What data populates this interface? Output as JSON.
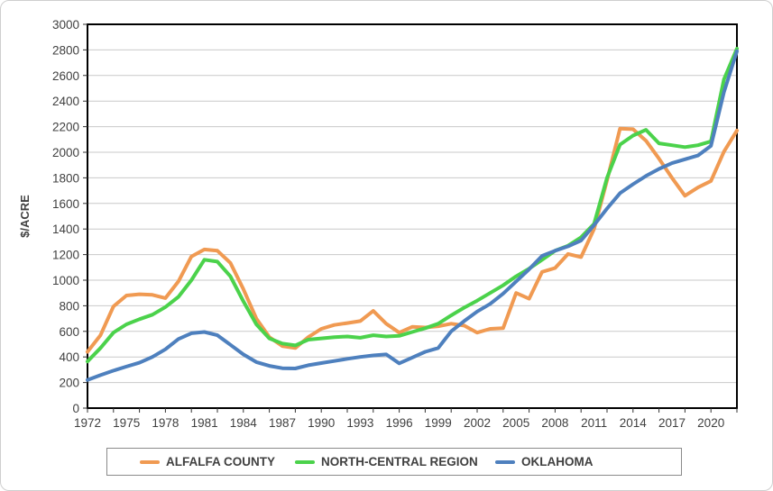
{
  "chart_data": {
    "type": "line",
    "title": "",
    "xlabel": "",
    "ylabel": "$/ACRE",
    "ylim": [
      0,
      3000
    ],
    "ytick_step": 200,
    "xlim": [
      1972,
      2022
    ],
    "xtick_labels": [
      "1972",
      "1975",
      "1978",
      "1981",
      "1984",
      "1987",
      "1990",
      "1993",
      "1996",
      "1999",
      "2002",
      "2005",
      "2008",
      "2011",
      "2014",
      "2017",
      "2020"
    ],
    "xtick_minor_step": 2,
    "grid": "horizontal",
    "legend_position": "bottom",
    "plot_border_color": "#000000",
    "grid_color": "#c9c9c9",
    "tick_label_color": "#404040",
    "x": [
      1972,
      1973,
      1974,
      1975,
      1976,
      1977,
      1978,
      1979,
      1980,
      1981,
      1982,
      1983,
      1984,
      1985,
      1986,
      1987,
      1988,
      1989,
      1990,
      1991,
      1992,
      1993,
      1994,
      1995,
      1996,
      1997,
      1998,
      1999,
      2000,
      2001,
      2002,
      2003,
      2004,
      2005,
      2006,
      2007,
      2008,
      2009,
      2010,
      2011,
      2012,
      2013,
      2014,
      2015,
      2016,
      2017,
      2018,
      2019,
      2020,
      2021,
      2022
    ],
    "series": [
      {
        "name": "ALFALFA COUNTY",
        "color": "#F09A52",
        "values": [
          440,
          570,
          795,
          880,
          890,
          885,
          860,
          990,
          1185,
          1240,
          1230,
          1135,
          930,
          700,
          555,
          485,
          470,
          555,
          620,
          650,
          665,
          680,
          760,
          660,
          590,
          635,
          630,
          640,
          660,
          645,
          590,
          620,
          625,
          900,
          855,
          1065,
          1095,
          1205,
          1180,
          1400,
          1780,
          2185,
          2180,
          2090,
          1950,
          1800,
          1660,
          1725,
          1775,
          2005,
          2170
        ]
      },
      {
        "name": "NORTH-CENTRAL REGION",
        "color": "#4BD24B",
        "values": [
          365,
          470,
          590,
          655,
          695,
          730,
          790,
          870,
          1000,
          1160,
          1145,
          1030,
          835,
          655,
          545,
          505,
          490,
          535,
          545,
          555,
          560,
          550,
          570,
          560,
          565,
          595,
          625,
          660,
          725,
          785,
          840,
          900,
          960,
          1030,
          1090,
          1160,
          1230,
          1270,
          1335,
          1440,
          1800,
          2060,
          2130,
          2175,
          2070,
          2055,
          2040,
          2055,
          2085,
          2570,
          2810
        ]
      },
      {
        "name": "OKLAHOMA",
        "color": "#4E80BE",
        "values": [
          220,
          258,
          293,
          325,
          355,
          400,
          460,
          540,
          585,
          595,
          570,
          495,
          420,
          360,
          330,
          312,
          310,
          335,
          352,
          368,
          385,
          400,
          412,
          420,
          350,
          395,
          440,
          470,
          600,
          680,
          755,
          815,
          895,
          990,
          1085,
          1190,
          1230,
          1265,
          1310,
          1430,
          1560,
          1680,
          1750,
          1815,
          1870,
          1915,
          1945,
          1975,
          2050,
          2470,
          2790
        ]
      }
    ]
  }
}
